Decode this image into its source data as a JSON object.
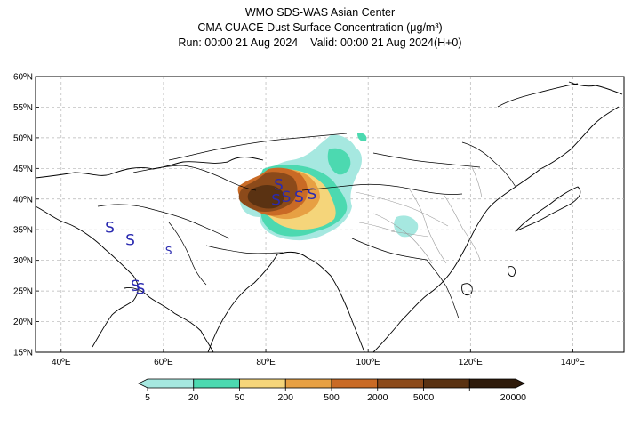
{
  "header": {
    "line1": "WMO SDS-WAS Asian Center",
    "line2": "CMA CUACE Dust Surface Concentration (μg/m³)",
    "line3_run": "Run: 00:00 21 Aug 2024",
    "line3_valid": "Valid: 00:00 21 Aug 2024(H+0)"
  },
  "map": {
    "lat_labels": [
      "60ºN",
      "55ºN",
      "50ºN",
      "45ºN",
      "40ºN",
      "35ºN",
      "30ºN",
      "25ºN",
      "20ºN",
      "15ºN"
    ],
    "lat_values": [
      60,
      55,
      50,
      45,
      40,
      35,
      30,
      25,
      20,
      15
    ],
    "lon_labels": [
      "40ºE",
      "60ºE",
      "80ºE",
      "100ºE",
      "120ºE",
      "140ºE"
    ],
    "lon_values": [
      40,
      60,
      80,
      100,
      120,
      140
    ],
    "extent": {
      "lon_min": 35,
      "lon_max": 150,
      "lat_min": 15,
      "lat_max": 60
    },
    "storm_symbol": "S",
    "storm_markers": [
      {
        "lon": 49.5,
        "lat": 34.5,
        "size": "large"
      },
      {
        "lon": 53.5,
        "lat": 32.5,
        "size": "large"
      },
      {
        "lon": 61,
        "lat": 31,
        "size": "small"
      },
      {
        "lon": 54.5,
        "lat": 25,
        "size": "large"
      },
      {
        "lon": 55.5,
        "lat": 24.5,
        "size": "large"
      },
      {
        "lon": 82.5,
        "lat": 41.5,
        "size": "large"
      },
      {
        "lon": 82,
        "lat": 39,
        "size": "large"
      },
      {
        "lon": 84,
        "lat": 39.5,
        "size": "large"
      },
      {
        "lon": 86.5,
        "lat": 39.5,
        "size": "large"
      },
      {
        "lon": 89,
        "lat": 40,
        "size": "large"
      }
    ]
  },
  "colorbar": {
    "levels": [
      "5",
      "20",
      "50",
      "200",
      "500",
      "2000",
      "5000",
      "20000"
    ],
    "colors": [
      "#a6e8e0",
      "#4cd9b0",
      "#f5d57a",
      "#e7a043",
      "#c96a25",
      "#8c4a1a",
      "#5a3212",
      "#2e1a0a"
    ]
  }
}
